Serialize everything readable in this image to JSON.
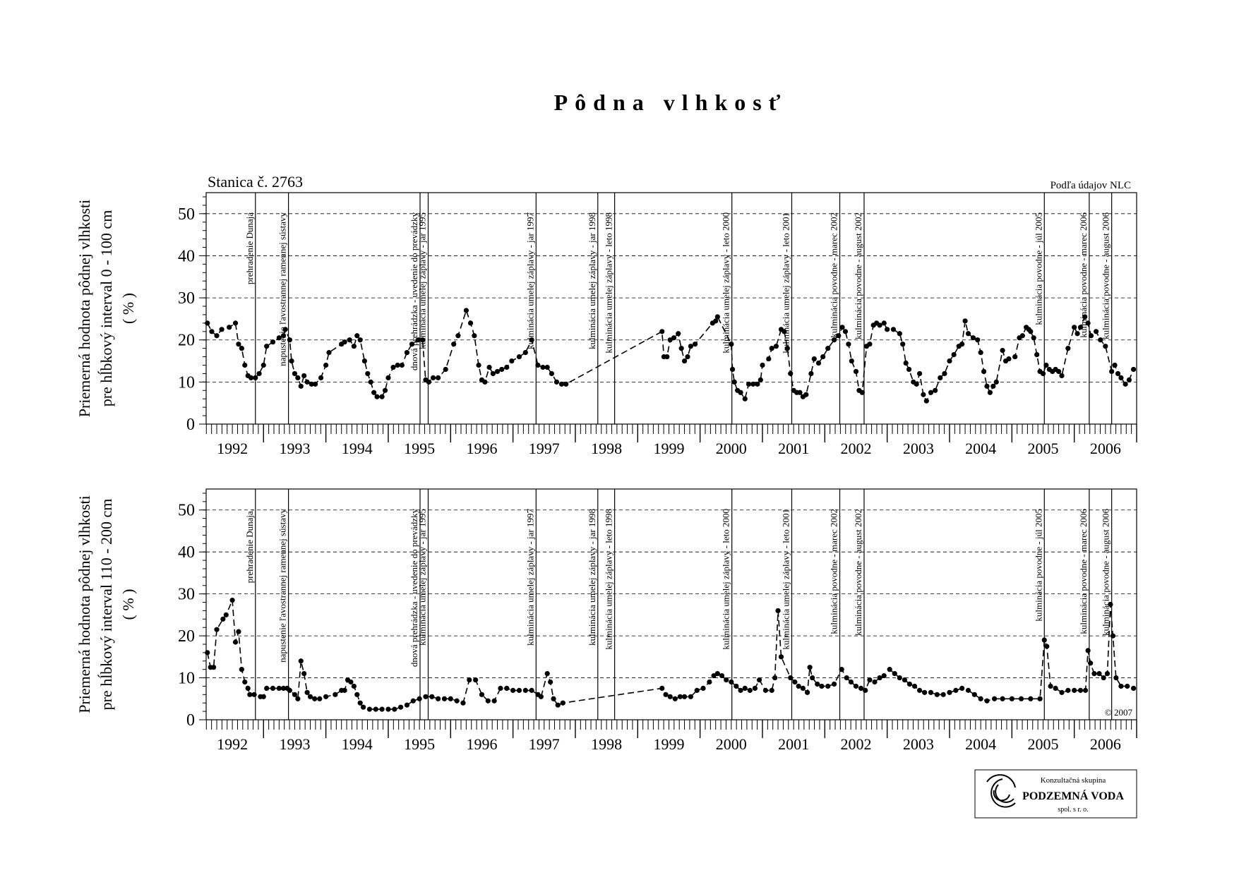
{
  "title": "Pôdna vlhkosť",
  "logo": {
    "line1": "Konzultačná skupina",
    "line2": "PODZEMNÁ VODA",
    "line3": "spol. s r. o."
  },
  "chart_data": [
    {
      "type": "line",
      "subtitle": "Stanica č. 2763",
      "source": "Podľa údajov NLC",
      "ylabel": [
        "Priemerná hodnota pôdnej vlhkosti",
        "pre hĺbkový interval 0 - 100 cm",
        "( % )"
      ],
      "color": "#000000",
      "grid": true,
      "xlim": [
        1992.08,
        2007.0
      ],
      "xticks": [
        {
          "value": 1992.5,
          "label": "1992"
        },
        {
          "value": 1993.5,
          "label": "1993"
        },
        {
          "value": 1994.5,
          "label": "1994"
        },
        {
          "value": 1995.5,
          "label": "1995"
        },
        {
          "value": 1996.5,
          "label": "1996"
        },
        {
          "value": 1997.5,
          "label": "1997"
        },
        {
          "value": 1998.5,
          "label": "1998"
        },
        {
          "value": 1999.5,
          "label": "1999"
        },
        {
          "value": 2000.5,
          "label": "2000"
        },
        {
          "value": 2001.5,
          "label": "2001"
        },
        {
          "value": 2002.5,
          "label": "2002"
        },
        {
          "value": 2003.5,
          "label": "2003"
        },
        {
          "value": 2004.5,
          "label": "2004"
        },
        {
          "value": 2005.5,
          "label": "2005"
        },
        {
          "value": 2006.5,
          "label": "2006"
        }
      ],
      "ylim": [
        0,
        55
      ],
      "yticks": [
        0,
        10,
        20,
        30,
        40,
        50
      ],
      "events": [
        {
          "x": 1992.87,
          "label": "prehradenie Dunaja"
        },
        {
          "x": 1993.4,
          "label": "napustenie ľavostrannej ramennej sústavy"
        },
        {
          "x": 1995.51,
          "label": "dnová prehrádzka - uvedenie do prevádzky"
        },
        {
          "x": 1995.64,
          "label": "kulminácia umelej záplavy - jar 1995"
        },
        {
          "x": 1997.37,
          "label": "kulminácia umelej záplavy - jar 1997"
        },
        {
          "x": 1998.36,
          "label": "kulminácia umelej záplavy - jar 1998"
        },
        {
          "x": 1998.63,
          "label": "kulminácia umelej záplavy - leto 1998"
        },
        {
          "x": 2000.51,
          "label": "kulminácia umelej záplavy - leto 2000"
        },
        {
          "x": 2001.47,
          "label": "kulminácia umelej záplavy - leto 2001"
        },
        {
          "x": 2002.24,
          "label": "kulminácia povodne - marec 2002"
        },
        {
          "x": 2002.63,
          "label": "kulminácia povodne - august 2002"
        },
        {
          "x": 2005.52,
          "label": "kulminácia povodne - júl 2005"
        },
        {
          "x": 2006.24,
          "label": "kulminácia povodne - marec 2006"
        },
        {
          "x": 2006.6,
          "label": "kulminácia povodne - august 2006"
        }
      ],
      "x": [
        1992.1,
        1992.17,
        1992.25,
        1992.33,
        1992.45,
        1992.55,
        1992.6,
        1992.65,
        1992.7,
        1992.75,
        1992.8,
        1992.87,
        1992.93,
        1993.0,
        1993.05,
        1993.15,
        1993.25,
        1993.32,
        1993.35,
        1993.42,
        1993.45,
        1993.5,
        1993.55,
        1993.6,
        1993.65,
        1993.7,
        1993.77,
        1993.83,
        1993.92,
        1994.0,
        1994.05,
        1994.25,
        1994.3,
        1994.38,
        1994.45,
        1994.5,
        1994.55,
        1994.62,
        1994.67,
        1994.72,
        1994.77,
        1994.82,
        1994.9,
        1994.95,
        1995.0,
        1995.08,
        1995.15,
        1995.22,
        1995.3,
        1995.38,
        1995.48,
        1995.55,
        1995.6,
        1995.65,
        1995.72,
        1995.8,
        1995.92,
        1996.05,
        1996.12,
        1996.25,
        1996.32,
        1996.38,
        1996.45,
        1996.5,
        1996.55,
        1996.62,
        1996.68,
        1996.75,
        1996.82,
        1996.9,
        1996.98,
        1997.1,
        1997.2,
        1997.3,
        1997.4,
        1997.48,
        1997.55,
        1997.62,
        1997.7,
        1997.78,
        1997.85,
        1999.39,
        1999.42,
        1999.47,
        1999.52,
        1999.58,
        1999.65,
        1999.7,
        1999.75,
        1999.8,
        1999.85,
        1999.92,
        2000.2,
        2000.25,
        2000.28,
        2000.5,
        2000.52,
        2000.55,
        2000.6,
        2000.65,
        2000.72,
        2000.78,
        2000.85,
        2000.92,
        2000.97,
        2001.0,
        2001.1,
        2001.15,
        2001.22,
        2001.3,
        2001.35,
        2001.4,
        2001.45,
        2001.5,
        2001.55,
        2001.6,
        2001.65,
        2001.7,
        2001.78,
        2001.83,
        2001.9,
        2001.97,
        2002.05,
        2002.15,
        2002.22,
        2002.28,
        2002.33,
        2002.38,
        2002.43,
        2002.5,
        2002.55,
        2002.6,
        2002.67,
        2002.72,
        2002.78,
        2002.83,
        2002.88,
        2002.95,
        2003.0,
        2003.1,
        2003.2,
        2003.25,
        2003.3,
        2003.35,
        2003.42,
        2003.47,
        2003.52,
        2003.58,
        2003.63,
        2003.7,
        2003.77,
        2003.85,
        2003.92,
        2004.0,
        2004.07,
        2004.15,
        2004.2,
        2004.25,
        2004.3,
        2004.38,
        2004.45,
        2004.5,
        2004.55,
        2004.6,
        2004.65,
        2004.7,
        2004.75,
        2004.85,
        2004.9,
        2004.95,
        2005.05,
        2005.12,
        2005.17,
        2005.23,
        2005.27,
        2005.3,
        2005.35,
        2005.4,
        2005.45,
        2005.5,
        2005.55,
        2005.6,
        2005.65,
        2005.7,
        2005.75,
        2005.8,
        2005.9,
        2006.0,
        2006.05,
        2006.1,
        2006.17,
        2006.22,
        2006.27,
        2006.35,
        2006.42,
        2006.5,
        2006.6,
        2006.65,
        2006.7,
        2006.75,
        2006.82,
        2006.88,
        2006.95
      ],
      "values": [
        24,
        22,
        21,
        22.5,
        23,
        24,
        19,
        18,
        14,
        11.5,
        11,
        11,
        12,
        14,
        18.5,
        19.5,
        20.5,
        21,
        22.5,
        20,
        15,
        12,
        11,
        9,
        11.5,
        10,
        9.5,
        9.5,
        11,
        14,
        17,
        19,
        19.5,
        20,
        18.5,
        21,
        20,
        15,
        12,
        10,
        7.5,
        6.5,
        6.5,
        8,
        11,
        13.5,
        14,
        14,
        17,
        19,
        20,
        20,
        10.5,
        10,
        11,
        11,
        13,
        19,
        21,
        27,
        24,
        21,
        14,
        10.5,
        10,
        13.5,
        12,
        12.5,
        13,
        13.5,
        15,
        16,
        17,
        20,
        14,
        13.5,
        13.5,
        12,
        10,
        9.5,
        9.5,
        22,
        16,
        16,
        20,
        20.5,
        21.5,
        18,
        15,
        16,
        18.5,
        19,
        24,
        24.5,
        25.5,
        19,
        13,
        10,
        8,
        7.5,
        6,
        9.5,
        9.5,
        9.5,
        10.5,
        14,
        15.5,
        18,
        18.5,
        22.5,
        22,
        18,
        12,
        8,
        7.5,
        7.5,
        6.5,
        7,
        12,
        15.5,
        14.5,
        16,
        18,
        20,
        21,
        23,
        22,
        19,
        15,
        12.5,
        8,
        7.5,
        18.5,
        19,
        23.5,
        24,
        23.5,
        24,
        22.5,
        22.5,
        21.5,
        19,
        14.5,
        13,
        10,
        9.5,
        12,
        7,
        5.5,
        7.5,
        8,
        11,
        12,
        15,
        16.5,
        18.5,
        19,
        24.5,
        21.5,
        20.5,
        20,
        17,
        12.5,
        9,
        7.5,
        9,
        10,
        17.5,
        15,
        15.5,
        16,
        20.5,
        21,
        23,
        22.5,
        22,
        20.5,
        16.5,
        12.5,
        12,
        14,
        13,
        12.5,
        13,
        12.5,
        11.5,
        18,
        23,
        21.5,
        23,
        25.5,
        24,
        21,
        22,
        20,
        18.5,
        12.5,
        14,
        12,
        11,
        9.5,
        10.5,
        13
      ]
    },
    {
      "type": "line",
      "annotation": "© 2007",
      "ylabel": [
        "Priemerná hodnota pôdnej vlhkosti",
        "pre hĺbkový interval 110 - 200 cm",
        "( % )"
      ],
      "color": "#000000",
      "grid": true,
      "xlim": [
        1992.08,
        2007.0
      ],
      "xticks": [
        {
          "value": 1992.5,
          "label": "1992"
        },
        {
          "value": 1993.5,
          "label": "1993"
        },
        {
          "value": 1994.5,
          "label": "1994"
        },
        {
          "value": 1995.5,
          "label": "1995"
        },
        {
          "value": 1996.5,
          "label": "1996"
        },
        {
          "value": 1997.5,
          "label": "1997"
        },
        {
          "value": 1998.5,
          "label": "1998"
        },
        {
          "value": 1999.5,
          "label": "1999"
        },
        {
          "value": 2000.5,
          "label": "2000"
        },
        {
          "value": 2001.5,
          "label": "2001"
        },
        {
          "value": 2002.5,
          "label": "2002"
        },
        {
          "value": 2003.5,
          "label": "2003"
        },
        {
          "value": 2004.5,
          "label": "2004"
        },
        {
          "value": 2005.5,
          "label": "2005"
        },
        {
          "value": 2006.5,
          "label": "2006"
        }
      ],
      "ylim": [
        0,
        55
      ],
      "yticks": [
        0,
        10,
        20,
        30,
        40,
        50
      ],
      "events": [
        {
          "x": 1992.87,
          "label": "prehradenie Dunaja,"
        },
        {
          "x": 1993.4,
          "label": "napustenie ľavostrannej ramennej sústavy"
        },
        {
          "x": 1995.51,
          "label": "dnová prehrádzka - uvedenie do prevádzky"
        },
        {
          "x": 1995.64,
          "label": "kulminácia umelej záplavy - jar 1995"
        },
        {
          "x": 1997.37,
          "label": "kulminácia umelej záplavy - jar 1997"
        },
        {
          "x": 1998.36,
          "label": "kulminácia umelej záplavy - jar 1998"
        },
        {
          "x": 1998.63,
          "label": "kulminácia umelej záplavy - leto 1998"
        },
        {
          "x": 2000.51,
          "label": "kulminácia umelej záplavy - leto 2000"
        },
        {
          "x": 2001.47,
          "label": "kulminácia umelej záplavy - leto 2001"
        },
        {
          "x": 2002.24,
          "label": "kulminácia povodne - marec 2002"
        },
        {
          "x": 2002.63,
          "label": "kulminácia povodne - august 2002"
        },
        {
          "x": 2005.52,
          "label": "kulminácia povodne - júl 2005"
        },
        {
          "x": 2006.24,
          "label": "kulminácia povodne - marec 2006"
        },
        {
          "x": 2006.6,
          "label": "kulminácia povodne - august 2006"
        }
      ],
      "x": [
        1992.1,
        1992.15,
        1992.2,
        1992.25,
        1992.35,
        1992.4,
        1992.5,
        1992.55,
        1992.6,
        1992.65,
        1992.7,
        1992.75,
        1992.78,
        1992.85,
        1992.95,
        1993.0,
        1993.05,
        1993.15,
        1993.25,
        1993.32,
        1993.38,
        1993.42,
        1993.5,
        1993.55,
        1993.6,
        1993.65,
        1993.7,
        1993.75,
        1993.82,
        1993.9,
        1994.0,
        1994.15,
        1994.25,
        1994.3,
        1994.35,
        1994.4,
        1994.45,
        1994.5,
        1994.55,
        1994.6,
        1994.7,
        1994.8,
        1994.9,
        1995.0,
        1995.1,
        1995.2,
        1995.3,
        1995.4,
        1995.5,
        1995.6,
        1995.7,
        1995.8,
        1995.9,
        1996.0,
        1996.1,
        1996.2,
        1996.3,
        1996.4,
        1996.5,
        1996.6,
        1996.7,
        1996.8,
        1996.9,
        1997.0,
        1997.1,
        1997.2,
        1997.3,
        1997.4,
        1997.45,
        1997.55,
        1997.6,
        1997.65,
        1997.72,
        1997.8,
        1999.39,
        1999.45,
        1999.52,
        1999.6,
        1999.68,
        1999.75,
        1999.85,
        1999.95,
        2000.05,
        2000.15,
        2000.22,
        2000.28,
        2000.35,
        2000.42,
        2000.5,
        2000.58,
        2000.65,
        2000.72,
        2000.8,
        2000.88,
        2000.95,
        2001.05,
        2001.15,
        2001.2,
        2001.25,
        2001.3,
        2001.45,
        2001.52,
        2001.58,
        2001.65,
        2001.72,
        2001.76,
        2001.8,
        2001.88,
        2001.95,
        2002.05,
        2002.15,
        2002.27,
        2002.35,
        2002.42,
        2002.5,
        2002.58,
        2002.65,
        2002.72,
        2002.8,
        2002.88,
        2002.95,
        2003.04,
        2003.12,
        2003.2,
        2003.28,
        2003.36,
        2003.44,
        2003.52,
        2003.6,
        2003.7,
        2003.8,
        2003.9,
        2004.0,
        2004.1,
        2004.2,
        2004.3,
        2004.4,
        2004.5,
        2004.6,
        2004.72,
        2004.85,
        2005.0,
        2005.15,
        2005.3,
        2005.45,
        2005.52,
        2005.56,
        2005.62,
        2005.7,
        2005.8,
        2005.9,
        2006.0,
        2006.1,
        2006.18,
        2006.22,
        2006.26,
        2006.32,
        2006.4,
        2006.47,
        2006.53,
        2006.58,
        2006.62,
        2006.67,
        2006.75,
        2006.85,
        2006.95
      ],
      "values": [
        16,
        12.5,
        12.5,
        21.5,
        24,
        25,
        28.5,
        18.5,
        21,
        12,
        9,
        7.5,
        6,
        6,
        5.5,
        5.5,
        7.5,
        7.5,
        7.5,
        7.5,
        7.5,
        7,
        6,
        5,
        14,
        11,
        6.5,
        5.5,
        5,
        5,
        5.5,
        6,
        7,
        7,
        9.5,
        9,
        8,
        6,
        4,
        3,
        2.5,
        2.5,
        2.5,
        2.5,
        2.5,
        3,
        3.5,
        4.5,
        5,
        5.5,
        5.5,
        5,
        5,
        5,
        4.5,
        4,
        9.5,
        9.5,
        6,
        4.5,
        4.5,
        7.5,
        7.5,
        7,
        7,
        7,
        7,
        6,
        5.5,
        11,
        9,
        5,
        3.5,
        4,
        7.5,
        6,
        5.5,
        5,
        5.5,
        5.5,
        5.5,
        7,
        7.5,
        9,
        10.5,
        11,
        10.5,
        9.5,
        9,
        8,
        7,
        7.5,
        7,
        7.5,
        9.5,
        7,
        7,
        10,
        26,
        15,
        10,
        9,
        8,
        7.5,
        6.5,
        12.5,
        10,
        8.5,
        8,
        8,
        8.5,
        12,
        10,
        9,
        8,
        7.5,
        7,
        9.5,
        9,
        10,
        10.5,
        12,
        11,
        10,
        9.5,
        8.5,
        8,
        7,
        6.5,
        6.5,
        6,
        6,
        6.5,
        7,
        7.5,
        7,
        6,
        5,
        4.5,
        5,
        5,
        5,
        5,
        5,
        5,
        19,
        17.5,
        8,
        7.5,
        6.5,
        7,
        7,
        7,
        7,
        16.5,
        13.5,
        11,
        11,
        10,
        11,
        27.5,
        20,
        10,
        8,
        8,
        7.5
      ]
    }
  ]
}
